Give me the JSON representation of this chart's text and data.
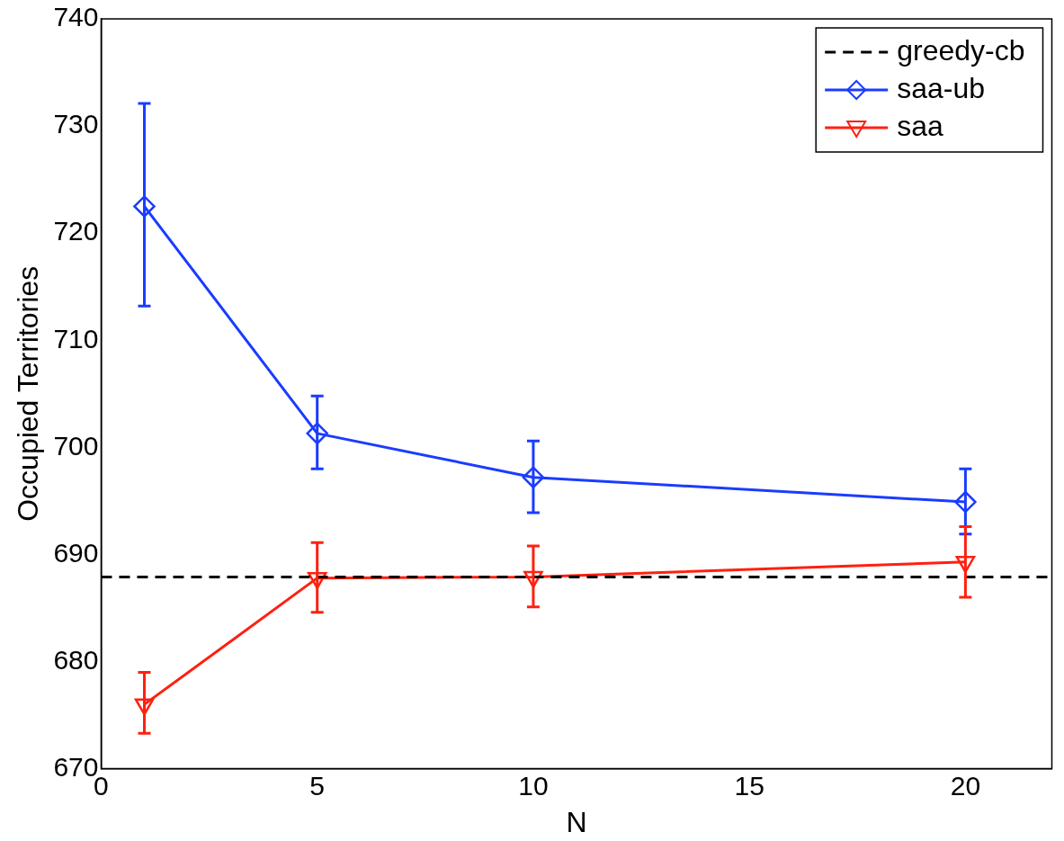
{
  "chart_data": {
    "type": "line",
    "xlabel": "N",
    "ylabel": "Occupied Territories",
    "xlim": [
      0,
      22
    ],
    "xticks": [
      0,
      5,
      10,
      15,
      20
    ],
    "ylim": [
      670,
      740
    ],
    "yticks": [
      670,
      680,
      690,
      700,
      710,
      720,
      730,
      740
    ],
    "grid": false,
    "legend": "top right",
    "series": [
      {
        "name": "greedy-cb",
        "type": "line",
        "color": "#000000",
        "x": [
          0,
          22
        ],
        "values": [
          687.9,
          687.9
        ],
        "marker": "none",
        "line_style": "dashed"
      },
      {
        "name": "saa-ub",
        "type": "line",
        "color": "#1a3cff",
        "x": [
          1,
          5,
          10,
          20
        ],
        "values": [
          722.5,
          701.3,
          697.2,
          694.9
        ],
        "errors": [
          [
            713.2,
            732.1
          ],
          [
            698,
            704.8
          ],
          [
            693.9,
            700.6
          ],
          [
            691.9,
            698
          ]
        ],
        "marker": "diamond",
        "line_style": "solid"
      },
      {
        "name": "saa",
        "type": "line",
        "color": "#ff2010",
        "x": [
          1,
          5,
          10,
          20
        ],
        "values": [
          676,
          687.8,
          687.9,
          689.3
        ],
        "errors": [
          [
            673.3,
            679
          ],
          [
            684.6,
            691.1
          ],
          [
            685.1,
            690.8
          ],
          [
            686,
            692.6
          ]
        ],
        "marker": "triangle",
        "line_style": "solid"
      }
    ]
  }
}
